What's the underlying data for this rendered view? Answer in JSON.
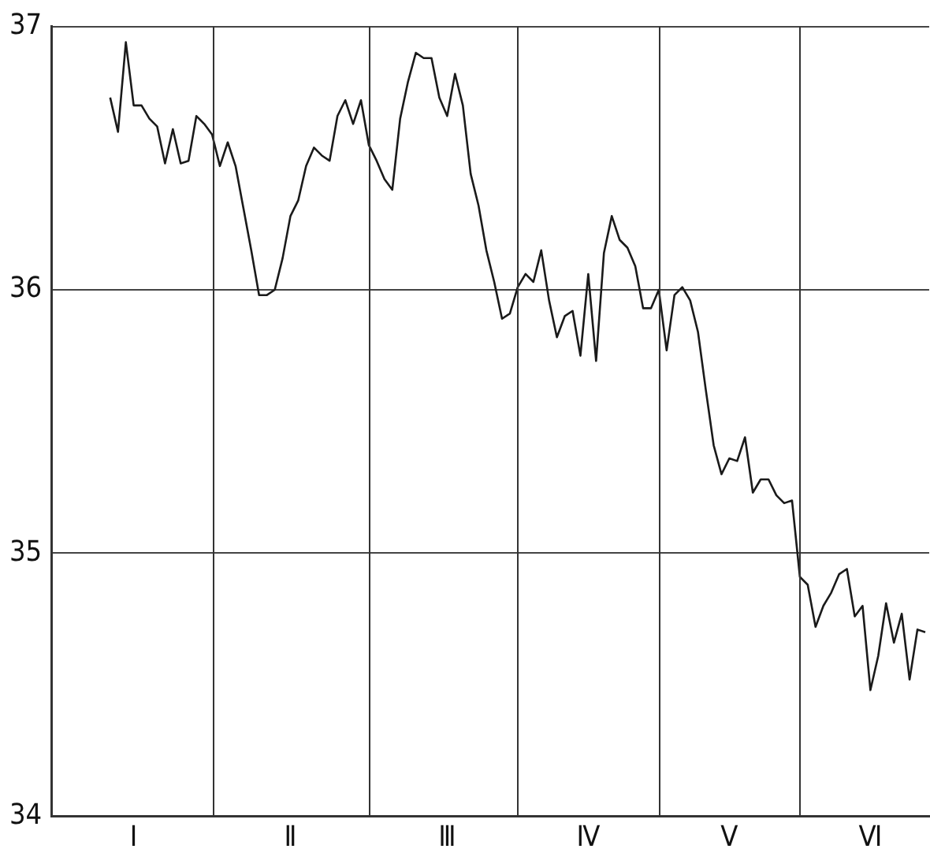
{
  "chart_data": {
    "type": "line",
    "grid": true,
    "categories": [
      null,
      null,
      null,
      null,
      null,
      null,
      null,
      null,
      null,
      null,
      "Ⅰ",
      null,
      null,
      null,
      null,
      null,
      null,
      null,
      null,
      null,
      null,
      null,
      null,
      null,
      null,
      null,
      null,
      null,
      null,
      null,
      "Ⅱ",
      null,
      null,
      null,
      null,
      null,
      null,
      null,
      null,
      null,
      null,
      null,
      null,
      null,
      null,
      null,
      null,
      null,
      null,
      null,
      "Ⅲ",
      null,
      null,
      null,
      null,
      null,
      null,
      null,
      null,
      null,
      null,
      null,
      null,
      null,
      null,
      null,
      null,
      null,
      "Ⅳ",
      null,
      null,
      null,
      null,
      null,
      null,
      null,
      null,
      null,
      null,
      null,
      null,
      null,
      null,
      null,
      null,
      null,
      "Ⅴ",
      null,
      null,
      null,
      null,
      null,
      null,
      null,
      null,
      null,
      null,
      null,
      null,
      null,
      null,
      null,
      null,
      null,
      "Ⅵ",
      null,
      null,
      null,
      null,
      null,
      null,
      null
    ],
    "ylim": [
      34,
      37
    ],
    "yticks": [
      34,
      35,
      36,
      37
    ],
    "series": [
      {
        "color": "#1a1a1a",
        "values": [
          null,
          null,
          null,
          null,
          null,
          null,
          null,
          36.73,
          36.6,
          36.94,
          36.7,
          36.7,
          36.65,
          36.62,
          36.48,
          36.61,
          36.48,
          36.49,
          36.66,
          36.63,
          36.59,
          36.47,
          36.56,
          36.47,
          36.31,
          36.15,
          35.98,
          35.98,
          36.0,
          36.12,
          36.28,
          36.34,
          36.47,
          36.54,
          36.51,
          36.49,
          36.66,
          36.72,
          36.63,
          36.72,
          36.55,
          36.49,
          36.42,
          36.38,
          36.65,
          36.79,
          36.9,
          36.88,
          36.88,
          36.73,
          36.66,
          36.82,
          36.7,
          36.44,
          36.32,
          36.15,
          36.03,
          35.89,
          35.91,
          36.01,
          36.06,
          36.03,
          36.15,
          35.96,
          35.82,
          35.9,
          35.92,
          35.75,
          36.06,
          35.73,
          36.14,
          36.28,
          36.19,
          36.16,
          36.09,
          35.93,
          35.93,
          36.0,
          35.77,
          35.98,
          36.01,
          35.96,
          35.84,
          35.62,
          35.41,
          35.3,
          35.36,
          35.35,
          35.44,
          35.23,
          35.28,
          35.28,
          35.22,
          35.19,
          35.2,
          34.91,
          34.88,
          34.72,
          34.8,
          34.85,
          34.92,
          34.94,
          34.76,
          34.8,
          34.48,
          34.61,
          34.81,
          34.66,
          34.77,
          34.52,
          34.71,
          34.7
        ]
      }
    ]
  }
}
